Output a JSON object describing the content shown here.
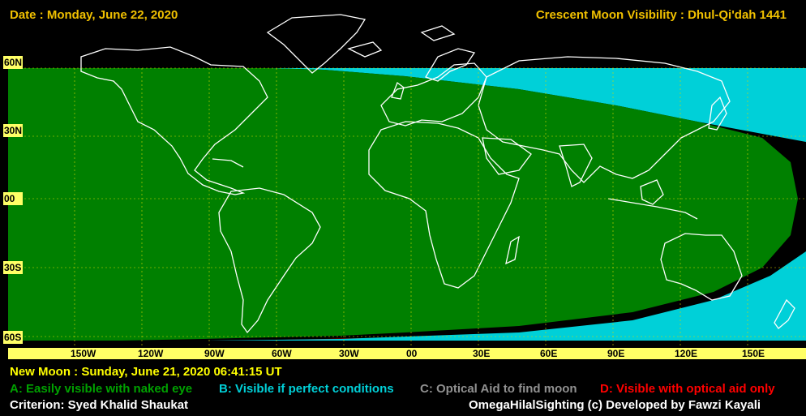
{
  "header": {
    "date": "Date : Monday, June 22, 2020",
    "title": "Crescent Moon Visibility : Dhul-Qi'dah  1441"
  },
  "lat_labels": [
    "60N",
    "30N",
    "00",
    "30S",
    "60S"
  ],
  "lon_labels": [
    "150W",
    "120W",
    "90W",
    "60W",
    "30W",
    "00",
    "30E",
    "60E",
    "90E",
    "120E",
    "150E"
  ],
  "new_moon": "New Moon : Sunday, June 21, 2020  06:41:15  UT",
  "legend": {
    "a": "A: Easily visible with naked eye",
    "b": "B: Visible if perfect conditions",
    "c": "C: Optical Aid to find moon",
    "d": "D: Visible with optical aid only"
  },
  "criterion": "Criterion: Syed Khalid Shaukat",
  "credit": "OmegaHilalSighting  (c)  Developed by Fawzi Kayali",
  "colors": {
    "zone_a": "#008000",
    "zone_b": "#00d0d8",
    "zone_c": "#909090",
    "zone_d": "#ff0000",
    "label_bg": "#ffff66",
    "header": "#f0c000",
    "new_moon": "#ffff00"
  }
}
